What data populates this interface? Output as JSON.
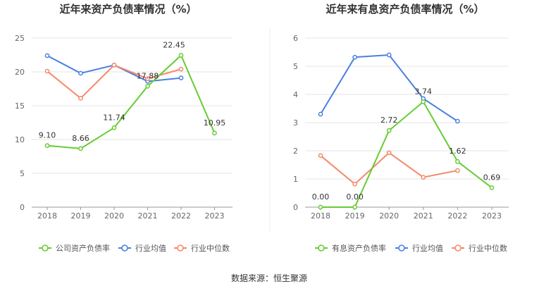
{
  "source": "数据来源：恒生聚源",
  "chart_data": [
    {
      "type": "line",
      "title": "近年来资产负债率情况（%）",
      "categories": [
        "2018",
        "2019",
        "2020",
        "2021",
        "2022",
        "2023"
      ],
      "ylim": [
        0,
        25
      ],
      "yticks": [
        0,
        5,
        10,
        15,
        20,
        25
      ],
      "grid": true,
      "legend": "bottom",
      "series": [
        {
          "name": "公司资产负债率",
          "color": "#66cc33",
          "values": [
            9.1,
            8.66,
            11.74,
            17.88,
            22.45,
            10.95
          ],
          "labels": [
            "9.10",
            "8.66",
            "11.74",
            "17.88",
            "22.45",
            "10.95"
          ]
        },
        {
          "name": "行业均值",
          "color": "#4a7fe0",
          "values": [
            22.4,
            19.8,
            21.0,
            18.6,
            19.1,
            null
          ]
        },
        {
          "name": "行业中位数",
          "color": "#f4896b",
          "values": [
            20.1,
            16.1,
            21.0,
            19.0,
            20.4,
            null
          ]
        }
      ]
    },
    {
      "type": "line",
      "title": "近年来有息资产负债率情况（%）",
      "categories": [
        "2018",
        "2019",
        "2020",
        "2021",
        "2022",
        "2023"
      ],
      "ylim": [
        0,
        6
      ],
      "yticks": [
        0,
        1,
        2,
        3,
        4,
        5,
        6
      ],
      "grid": true,
      "legend": "bottom",
      "series": [
        {
          "name": "有息资产负债率",
          "color": "#66cc33",
          "values": [
            0.0,
            0.0,
            2.72,
            3.74,
            1.62,
            0.69
          ],
          "labels": [
            "0.00",
            "0.00",
            "2.72",
            "3.74",
            "1.62",
            "0.69"
          ]
        },
        {
          "name": "行业均值",
          "color": "#4a7fe0",
          "values": [
            3.3,
            5.32,
            5.4,
            3.85,
            3.05,
            null
          ]
        },
        {
          "name": "行业中位数",
          "color": "#f4896b",
          "values": [
            1.83,
            0.82,
            1.93,
            1.06,
            1.3,
            null
          ]
        }
      ]
    }
  ]
}
